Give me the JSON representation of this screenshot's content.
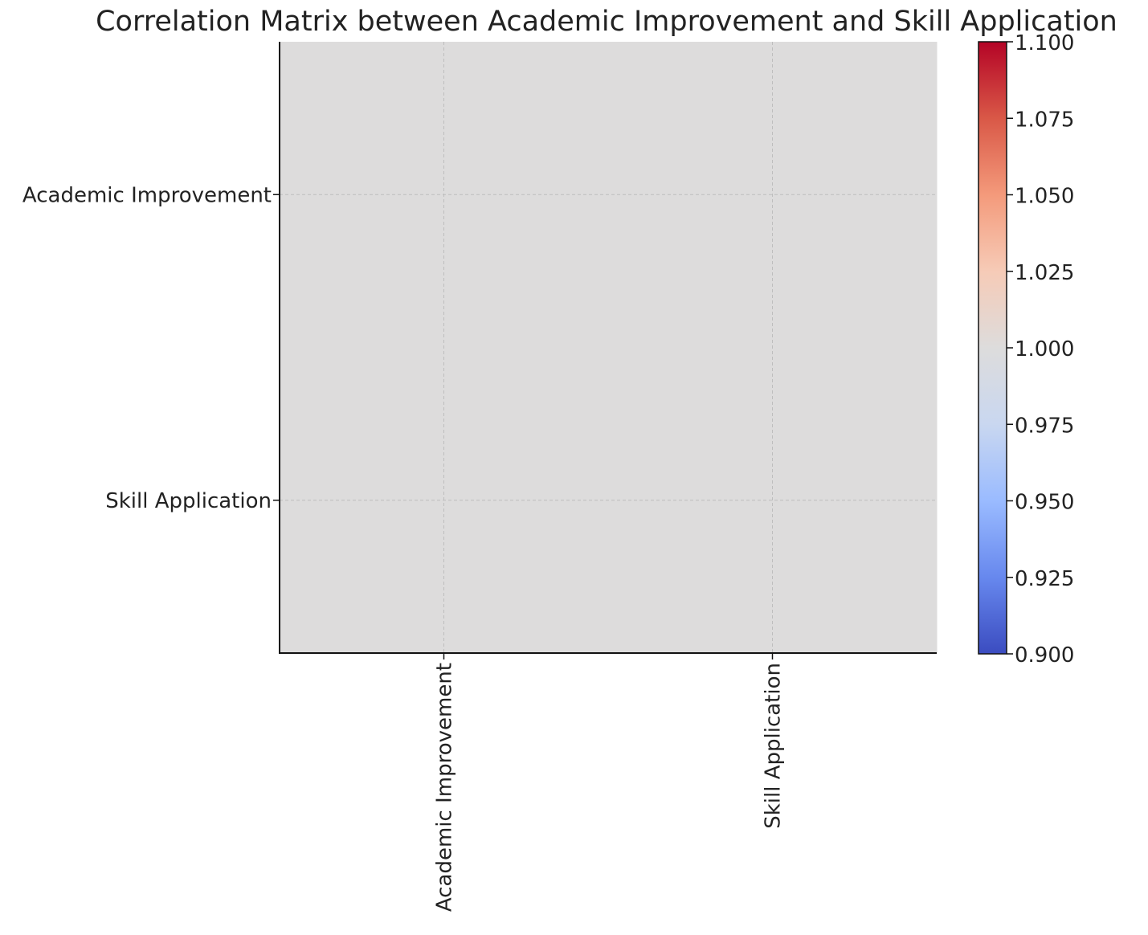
{
  "chart_data": {
    "type": "heatmap",
    "title": "Correlation Matrix between Academic Improvement and Skill Application",
    "x_categories": [
      "Academic Improvement",
      "Skill Application"
    ],
    "y_categories": [
      "Academic Improvement",
      "Skill Application"
    ],
    "values": [
      [
        1.0,
        1.0
      ],
      [
        1.0,
        1.0
      ]
    ],
    "colormap": "coolwarm",
    "colorbar": {
      "range": [
        0.9,
        1.1
      ],
      "ticks": [
        "0.900",
        "0.925",
        "0.950",
        "0.975",
        "1.000",
        "1.025",
        "1.050",
        "1.075",
        "1.100"
      ],
      "colors": [
        "#3b4cc0",
        "#6788ee",
        "#9abbff",
        "#c9d7f0",
        "#dddcdc",
        "#f6cbb7",
        "#f49a7b",
        "#d95847",
        "#b40426"
      ]
    },
    "grid": true
  }
}
